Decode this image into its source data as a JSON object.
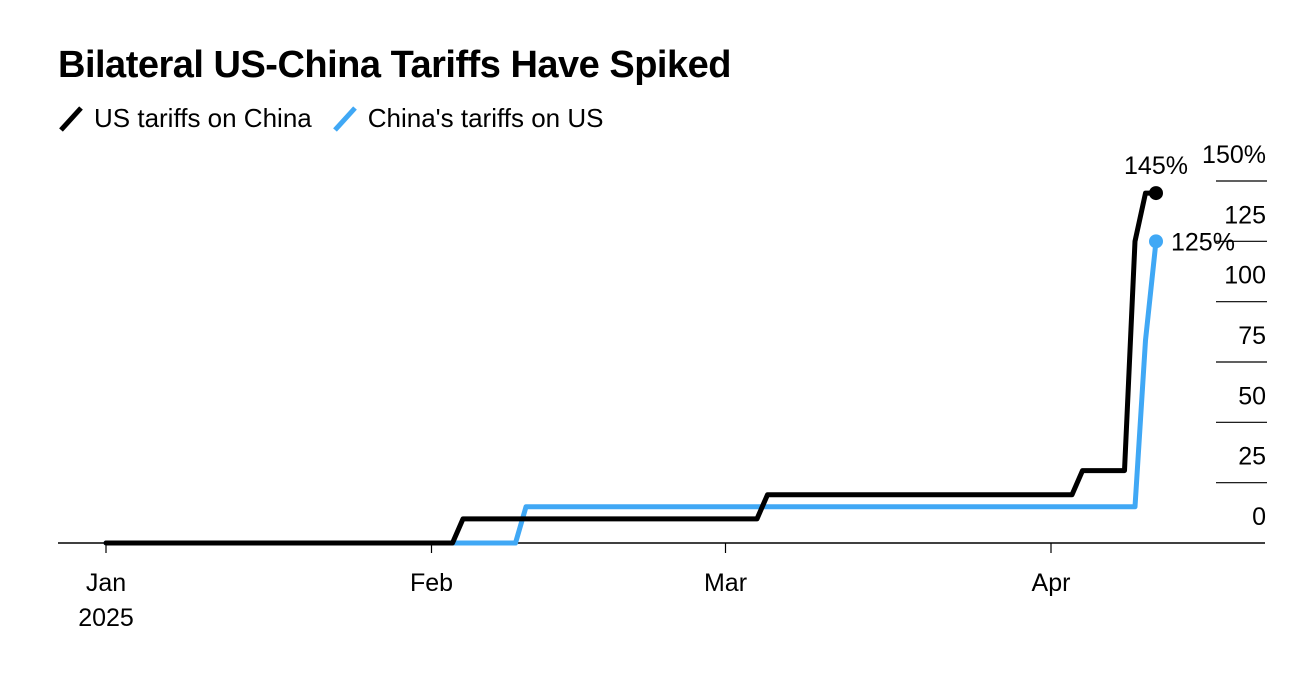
{
  "chart_data": {
    "type": "line",
    "title": "Bilateral US-China Tariffs Have Spiked",
    "xlabel": "",
    "ylabel": "",
    "ylim": [
      0,
      150
    ],
    "xlim": [
      "2025-01-01",
      "2025-04-18"
    ],
    "grid": true,
    "legend_position": "top-left",
    "y_ticks": [
      {
        "value": 0,
        "label": "0"
      },
      {
        "value": 25,
        "label": "25"
      },
      {
        "value": 50,
        "label": "50"
      },
      {
        "value": 75,
        "label": "75"
      },
      {
        "value": 100,
        "label": "100"
      },
      {
        "value": 125,
        "label": "125"
      },
      {
        "value": 150,
        "label": "150%"
      }
    ],
    "x_ticks": [
      {
        "date": "2025-01-01",
        "label": "Jan",
        "sublabel": "2025"
      },
      {
        "date": "2025-02-01",
        "label": "Feb"
      },
      {
        "date": "2025-03-01",
        "label": "Mar"
      },
      {
        "date": "2025-04-01",
        "label": "Apr"
      }
    ],
    "series": [
      {
        "name": "US tariffs on China",
        "color": "#000000",
        "end_label": "145%",
        "points": [
          [
            "2025-01-01",
            0
          ],
          [
            "2025-02-03",
            0
          ],
          [
            "2025-02-04",
            10
          ],
          [
            "2025-03-04",
            10
          ],
          [
            "2025-03-05",
            20
          ],
          [
            "2025-04-03",
            20
          ],
          [
            "2025-04-04",
            30
          ],
          [
            "2025-04-08",
            30
          ],
          [
            "2025-04-09",
            125
          ],
          [
            "2025-04-10",
            145
          ],
          [
            "2025-04-11",
            145
          ]
        ]
      },
      {
        "name": "China's tariffs on US",
        "color": "#40a8f5",
        "end_label": "125%",
        "points": [
          [
            "2025-01-01",
            0
          ],
          [
            "2025-02-09",
            0
          ],
          [
            "2025-02-10",
            15
          ],
          [
            "2025-04-09",
            15
          ],
          [
            "2025-04-10",
            84
          ],
          [
            "2025-04-11",
            125
          ]
        ]
      }
    ]
  }
}
